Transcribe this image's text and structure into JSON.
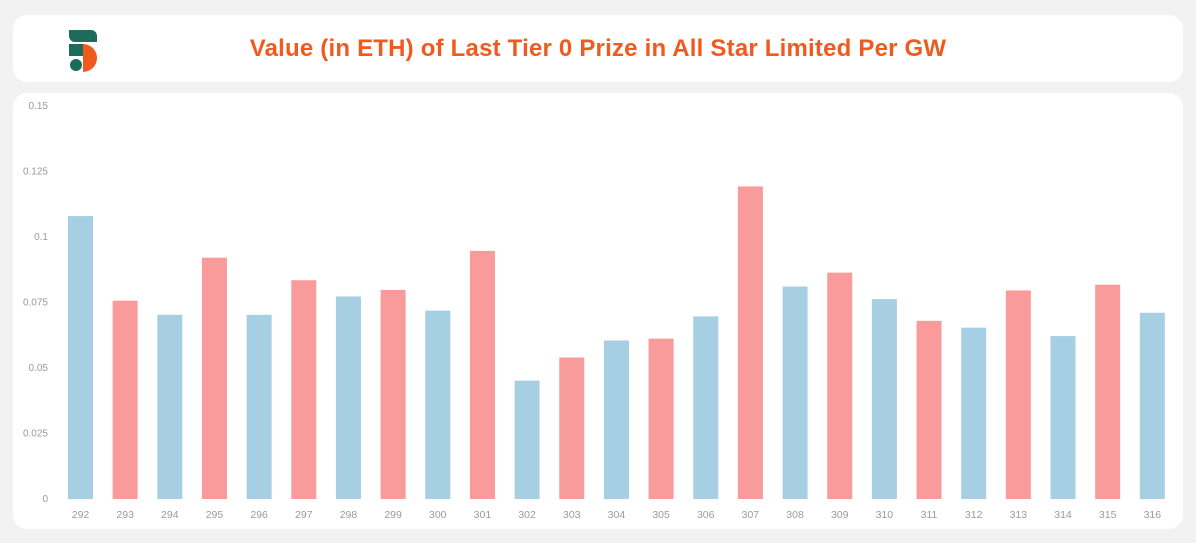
{
  "header": {
    "title": "Value (in ETH) of Last Tier 0 Prize in All Star Limited Per GW",
    "logo_icon": "sorare-s-logo-icon",
    "logo_colors": [
      "#1d6b5a",
      "#f15a1f"
    ]
  },
  "chart_data": {
    "type": "bar",
    "title": "Value (in ETH) of Last Tier 0 Prize in All Star Limited Per GW",
    "xlabel": "",
    "ylabel": "",
    "ylim": [
      0,
      0.15
    ],
    "y_ticks": [
      "0",
      "0.025",
      "0.05",
      "0.075",
      "0.1",
      "0.125",
      "0.15"
    ],
    "y_tick_values": [
      0,
      0.025,
      0.05,
      0.075,
      0.1,
      0.125,
      0.15
    ],
    "grid": false,
    "legend": "none",
    "categories": [
      "292",
      "293",
      "294",
      "295",
      "296",
      "297",
      "298",
      "299",
      "300",
      "301",
      "302",
      "303",
      "304",
      "305",
      "306",
      "307",
      "308",
      "309",
      "310",
      "311",
      "312",
      "313",
      "314",
      "315",
      "316"
    ],
    "values": [
      0.108,
      0.0757,
      0.0703,
      0.0921,
      0.0703,
      0.0835,
      0.0773,
      0.0798,
      0.0719,
      0.0947,
      0.0452,
      0.054,
      0.0605,
      0.0612,
      0.0697,
      0.1193,
      0.0811,
      0.0864,
      0.0763,
      0.068,
      0.0654,
      0.0796,
      0.0622,
      0.0818,
      0.0711
    ],
    "colors": {
      "odd": "#a7cfe3",
      "even": "#fa9b9b"
    }
  },
  "axis_style": {
    "tick_color": "#9a9a9a"
  }
}
